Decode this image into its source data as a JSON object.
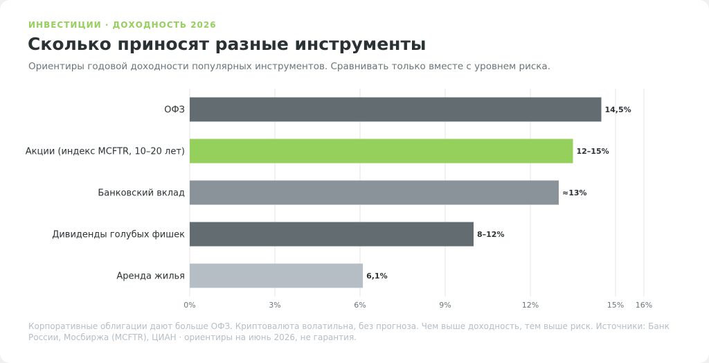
{
  "chart_data": {
    "type": "bar",
    "orientation": "horizontal",
    "eyebrow": "ИНВЕСТИЦИИ · ДОХОДНОСТЬ 2026",
    "title": "Сколько приносят разные инструменты",
    "subtitle": "Ориентиры годовой доходности популярных инструментов. Сравнивать только вместе с уровнем риска.",
    "categories": [
      "ОФЗ",
      "Акции (индекс MCFTR, 10–20 лет)",
      "Банковский вклад",
      "Дивиденды голубых фишек",
      "Аренда жилья"
    ],
    "values": [
      14.5,
      13.5,
      13,
      10,
      6.1
    ],
    "value_labels": [
      "14,5%",
      "12–15%",
      "≈13%",
      "8–12%",
      "6,1%"
    ],
    "colors": [
      "#636c70",
      "#95cf5c",
      "#8a9399",
      "#636c70",
      "#b4bec4"
    ],
    "xlim": [
      0,
      16
    ],
    "xticks": [
      {
        "value": 0,
        "label": "0%"
      },
      {
        "value": 3,
        "label": "3%"
      },
      {
        "value": 6,
        "label": "6%"
      },
      {
        "value": 9,
        "label": "9%"
      },
      {
        "value": 12,
        "label": "12%"
      },
      {
        "value": 15,
        "label": "15%"
      },
      {
        "value": 16,
        "label": "16%"
      }
    ],
    "grid": true,
    "note": "Корпоративные облигации дают больше ОФЗ. Криптовалюта волатильна, без прогноза. Чем выше доходность, тем выше риск. Источники: Банк России, Мосбиржа (MCFTR), ЦИАН · ориентиры на июнь 2026, не гарантия."
  }
}
